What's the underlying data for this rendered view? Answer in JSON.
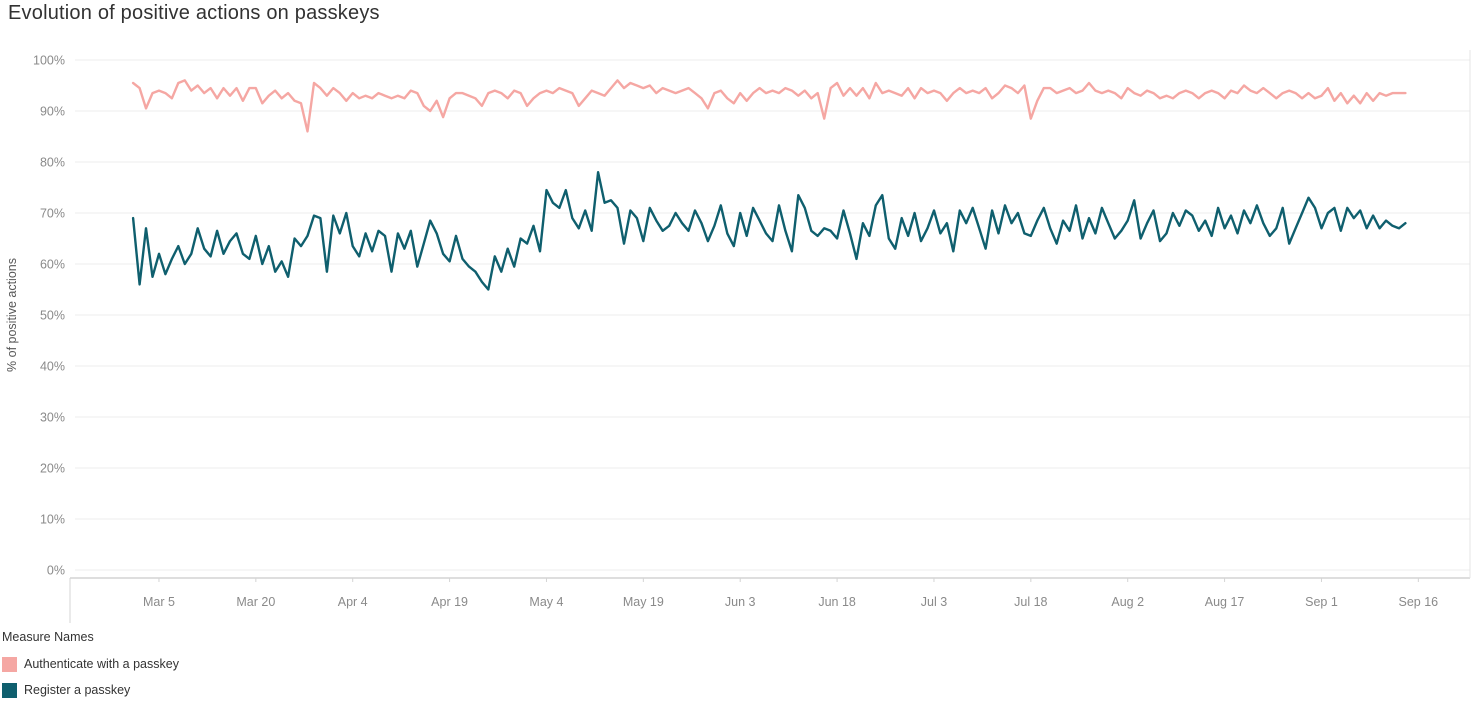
{
  "title": "Evolution of positive actions on passkeys",
  "axes": {
    "y_label": "% of positive actions",
    "y_ticks": [
      {
        "label": "0%",
        "value": 0
      },
      {
        "label": "10%",
        "value": 10
      },
      {
        "label": "20%",
        "value": 20
      },
      {
        "label": "30%",
        "value": 30
      },
      {
        "label": "40%",
        "value": 40
      },
      {
        "label": "50%",
        "value": 50
      },
      {
        "label": "60%",
        "value": 60
      },
      {
        "label": "70%",
        "value": 70
      },
      {
        "label": "80%",
        "value": 80
      },
      {
        "label": "90%",
        "value": 90
      },
      {
        "label": "100%",
        "value": 100
      }
    ],
    "x_ticks": [
      {
        "label": "Mar 5",
        "day": 4
      },
      {
        "label": "Mar 20",
        "day": 19
      },
      {
        "label": "Apr 4",
        "day": 34
      },
      {
        "label": "Apr 19",
        "day": 49
      },
      {
        "label": "May 4",
        "day": 64
      },
      {
        "label": "May 19",
        "day": 79
      },
      {
        "label": "Jun 3",
        "day": 94
      },
      {
        "label": "Jun 18",
        "day": 109
      },
      {
        "label": "Jul 3",
        "day": 124
      },
      {
        "label": "Jul 18",
        "day": 139
      },
      {
        "label": "Aug 2",
        "day": 154
      },
      {
        "label": "Aug 17",
        "day": 169
      },
      {
        "label": "Sep 1",
        "day": 184
      },
      {
        "label": "Sep 16",
        "day": 199
      }
    ]
  },
  "legend": {
    "title": "Measure Names",
    "items": [
      {
        "label": "Authenticate with a passkey",
        "color": "#f5a7a3"
      },
      {
        "label": "Register a passkey",
        "color": "#0f5f6e"
      }
    ]
  },
  "chart_data": {
    "type": "line",
    "title": "Evolution of positive actions on passkeys",
    "xlabel": "",
    "ylabel": "% of positive actions",
    "ylim": [
      0,
      100
    ],
    "x_unit": "days since Mar 1",
    "x_domain": [
      -9,
      207
    ],
    "x_start": 0,
    "x_step": 1,
    "grid": true,
    "legend_position": "bottom-left",
    "series": [
      {
        "name": "Authenticate with a passkey",
        "color": "#f5a7a3",
        "values": [
          95.5,
          94.5,
          90.5,
          93.5,
          94,
          93.5,
          92.5,
          95.5,
          96,
          94,
          95,
          93.5,
          94.5,
          92.5,
          94.5,
          93,
          94.5,
          92,
          94.5,
          94.5,
          91.5,
          93,
          94,
          92.5,
          93.5,
          92,
          91.5,
          86,
          95.5,
          94.5,
          93,
          94.5,
          93.5,
          92,
          93.5,
          92.5,
          93,
          92.5,
          93.5,
          93,
          92.5,
          93,
          92.5,
          94,
          93.5,
          91,
          90,
          92,
          88.8,
          92.5,
          93.5,
          93.5,
          93,
          92.5,
          91,
          93.5,
          94,
          93.5,
          92.5,
          94,
          93.5,
          91,
          92.5,
          93.5,
          94,
          93.5,
          94.5,
          94,
          93.5,
          91,
          92.5,
          94,
          93.5,
          93,
          94.5,
          96,
          94.5,
          95.5,
          95,
          94.5,
          95,
          93.5,
          94.5,
          94,
          93.5,
          94,
          94.5,
          93.5,
          92.5,
          90.5,
          93.5,
          94,
          92.5,
          91.5,
          93.5,
          92,
          93.5,
          94.5,
          93.5,
          94,
          93.5,
          94.5,
          94,
          93,
          94,
          92.5,
          93.5,
          88.5,
          94.5,
          95.5,
          93,
          94.5,
          93,
          94.5,
          92.5,
          95.5,
          93.5,
          94,
          93.5,
          93,
          94.5,
          92.5,
          94.5,
          93.5,
          94,
          93.5,
          92,
          93.5,
          94.5,
          93.5,
          94,
          93.5,
          94.5,
          92.5,
          93.5,
          95,
          94.5,
          93.5,
          95,
          88.5,
          92,
          94.5,
          94.5,
          93.5,
          94,
          94.5,
          93.5,
          94,
          95.5,
          94,
          93.5,
          94,
          93.5,
          92.5,
          94.5,
          93.5,
          93,
          94,
          93.5,
          92.5,
          93,
          92.5,
          93.5,
          94,
          93.5,
          92.5,
          93.5,
          94,
          93.5,
          92.5,
          94,
          93.5,
          95,
          94,
          93.5,
          94.5,
          93.5,
          92.5,
          93.5,
          94,
          93.5,
          92.5,
          93.5,
          92.5,
          93,
          94.5,
          92,
          93.5,
          91.5,
          93,
          91.5,
          93.5,
          92,
          93.5,
          93,
          93.5,
          93.5,
          93.5
        ]
      },
      {
        "name": "Register a passkey",
        "color": "#0f5f6e",
        "values": [
          69,
          56,
          67,
          57.5,
          62,
          58,
          61,
          63.5,
          60,
          62,
          67,
          63,
          61.5,
          66.5,
          62,
          64.5,
          66,
          62,
          61,
          65.5,
          60,
          63.5,
          58.5,
          60.5,
          57.5,
          65,
          63.5,
          65.5,
          69.5,
          69,
          58.5,
          69.5,
          66,
          70,
          63.5,
          61.5,
          66,
          62.5,
          66.5,
          65.5,
          58.5,
          66,
          63,
          66.5,
          59.5,
          64,
          68.5,
          66,
          62,
          60.5,
          65.5,
          61,
          59.5,
          58.5,
          56.5,
          55,
          61.5,
          58.5,
          63,
          59.5,
          65,
          64,
          67.5,
          62.5,
          74.5,
          72,
          71,
          74.5,
          69,
          67,
          70.5,
          66.5,
          78,
          72,
          72.5,
          71,
          64,
          70.5,
          69,
          64.5,
          71,
          68.5,
          66.5,
          67.5,
          70,
          68,
          66.5,
          70.5,
          68,
          64.5,
          67.5,
          71.5,
          66,
          63.5,
          70,
          65.5,
          71,
          68.5,
          66,
          64.5,
          71.5,
          66.5,
          62.5,
          73.5,
          71,
          66.5,
          65.5,
          67,
          66.5,
          65,
          70.5,
          66,
          61,
          68,
          65.5,
          71.5,
          73.5,
          65,
          63,
          69,
          65.5,
          70,
          64.5,
          67,
          70.5,
          66,
          68,
          62.5,
          70.5,
          68,
          71,
          67,
          63,
          70.5,
          66,
          71.5,
          68,
          70,
          66,
          65.5,
          68.5,
          71,
          67,
          64,
          68.5,
          66.5,
          71.5,
          65,
          69,
          66,
          71,
          68,
          65,
          66.5,
          68.5,
          72.5,
          65,
          68,
          70.5,
          64.5,
          66,
          70,
          67.5,
          70.5,
          69.5,
          66.5,
          68.5,
          65.5,
          71,
          67,
          69.5,
          66,
          70.5,
          68,
          71.5,
          68,
          65.5,
          67,
          71,
          64,
          67,
          70,
          73,
          71,
          67,
          70,
          71,
          66.5,
          71,
          69,
          70.5,
          67,
          69.5,
          67,
          68.5,
          67.5,
          67,
          68
        ]
      }
    ]
  }
}
